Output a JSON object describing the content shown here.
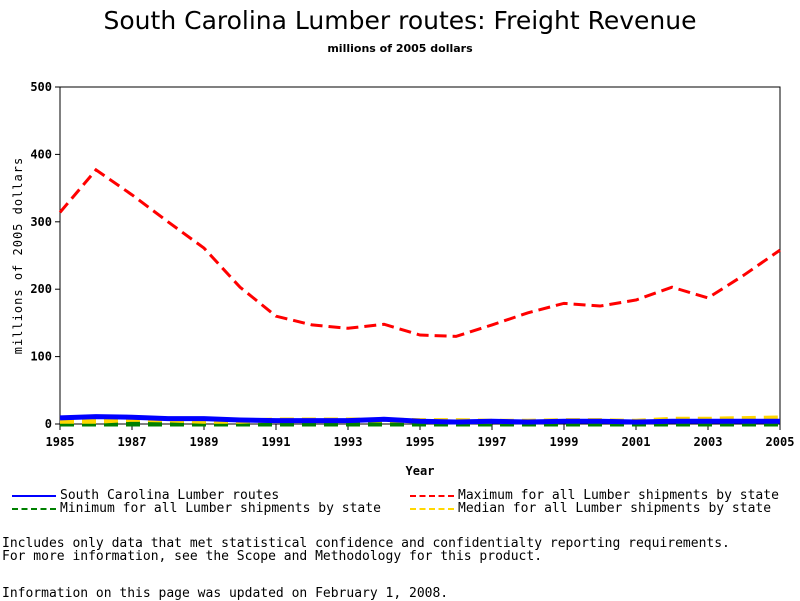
{
  "chart_data": {
    "type": "line",
    "title": "South Carolina Lumber routes: Freight Revenue",
    "subtitle": "millions of 2005 dollars",
    "xlabel": "Year",
    "ylabel": "millions of 2005 dollars",
    "xlim": [
      1985,
      2005
    ],
    "ylim": [
      0,
      500
    ],
    "xticks": [
      "1985",
      "1987",
      "1989",
      "1991",
      "1993",
      "1995",
      "1997",
      "1999",
      "2001",
      "2003",
      "2005"
    ],
    "yticks": [
      "0",
      "100",
      "200",
      "300",
      "400",
      "500"
    ],
    "legend_placement": "bottom",
    "x": [
      1985,
      1986,
      1987,
      1988,
      1989,
      1990,
      1991,
      1992,
      1993,
      1994,
      1995,
      1996,
      1997,
      1998,
      1999,
      2000,
      2001,
      2002,
      2003,
      2004,
      2005
    ],
    "series": [
      {
        "name": "South Carolina Lumber routes",
        "color": "#0000ff",
        "dash": "solid",
        "values": [
          9,
          11,
          10,
          8,
          8,
          6,
          5,
          5,
          5,
          7,
          4,
          3,
          4,
          3,
          4,
          4,
          3,
          4,
          4,
          4,
          4
        ]
      },
      {
        "name": "Maximum for all Lumber shipments by state",
        "color": "#ff0000",
        "dash": "dashed",
        "values": [
          314,
          377,
          340,
          300,
          261,
          203,
          160,
          147,
          142,
          148,
          132,
          130,
          147,
          165,
          179,
          175,
          184,
          203,
          187,
          221,
          258
        ]
      },
      {
        "name": "Minimum for all Lumber shipments by state",
        "color": "#008000",
        "dash": "dashed",
        "values": [
          0,
          0,
          0,
          0,
          0,
          0,
          0,
          0,
          0,
          0,
          0,
          0,
          0,
          0,
          0,
          0,
          0,
          0,
          0,
          0,
          0
        ]
      },
      {
        "name": "Median for all Lumber shipments by state",
        "color": "#ffd700",
        "dash": "dashed",
        "values": [
          4,
          4,
          7,
          6,
          4,
          4,
          6,
          6,
          6,
          6,
          5,
          5,
          4,
          4,
          5,
          5,
          4,
          7,
          7,
          8,
          9
        ]
      }
    ]
  },
  "notes": [
    "Includes only data that met statistical confidence and confidentialty reporting requirements.",
    "For more information, see the Scope and Methodology for this product.",
    "Information on this page was updated on February 1, 2008."
  ]
}
